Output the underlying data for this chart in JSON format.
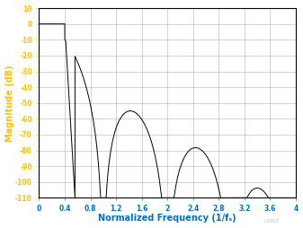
{
  "title": "",
  "xlabel": "Normalized Frequency (1/fₛ)",
  "ylabel": "Magnitude (dB)",
  "xlim": [
    0,
    4
  ],
  "ylim": [
    -110,
    10
  ],
  "xticks": [
    0,
    0.4,
    0.8,
    1.2,
    1.6,
    2.0,
    2.4,
    2.8,
    3.2,
    3.6,
    4.0
  ],
  "yticks": [
    10,
    0,
    -10,
    -20,
    -30,
    -40,
    -50,
    -60,
    -70,
    -80,
    -90,
    -100,
    -110
  ],
  "xtick_labels": [
    "0",
    "0.4",
    "0.8",
    "1.2",
    "1.6",
    "2",
    "2.4",
    "2.8",
    "3.2",
    "3.6",
    "4"
  ],
  "xlabel_color": "#0070C0",
  "ylabel_color": "#FFC000",
  "xtick_color": "#0070C0",
  "ytick_color": "#FFC000",
  "line_color": "#000000",
  "background_color": "#ffffff",
  "grid_color": "#b0b0b0",
  "watermark": "L3002",
  "passband_end": 0.4,
  "transition_end": 0.56,
  "floor_db": -110
}
